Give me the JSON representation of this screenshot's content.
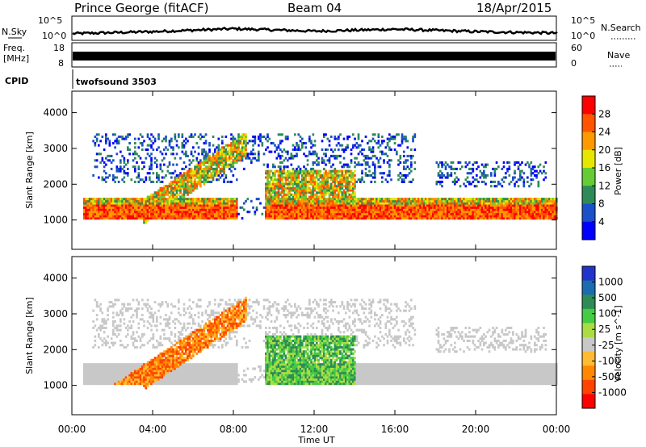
{
  "header": {
    "station": "Prince George (fitACF)",
    "beam": "Beam 04",
    "date": "18/Apr/2015"
  },
  "strip": {
    "nsky_label": "N.Sky",
    "nsky_ticks": [
      "10^5",
      "10^0"
    ],
    "nsearch_label": "N.Search",
    "nsearch_ticks": [
      "10^5",
      "10^0"
    ],
    "freq_label_1": "Freq.",
    "freq_label_2": "[MHz]",
    "freq_ticks": [
      "18",
      "8"
    ],
    "nave_label": "Nave",
    "nave_ticks": [
      "60",
      "0"
    ],
    "cpid_label": "CPID",
    "cpid_value": "twofsound 3503"
  },
  "colors": {
    "power": [
      "#0000ff",
      "#1a50c8",
      "#2e8b57",
      "#66cc33",
      "#e6e600",
      "#ff9900",
      "#ff5500",
      "#ff0000"
    ],
    "velocity": [
      "#ff0000",
      "#ff4400",
      "#ff8800",
      "#ffbb33",
      "#c8c8c8",
      "#aadd44",
      "#44cc44",
      "#2e8b57",
      "#1a6bb0",
      "#2233cc"
    ]
  },
  "chart_data": [
    {
      "type": "heatmap",
      "panel": "power",
      "xlabel": "Time UT",
      "ylabel": "Slant Range [km]",
      "x_ticks": [
        "00:00",
        "04:00",
        "08:00",
        "12:00",
        "16:00",
        "20:00",
        "00:00"
      ],
      "xlim": [
        "00:00",
        "24:00"
      ],
      "y_ticks": [
        "1000",
        "2000",
        "3000",
        "4000"
      ],
      "ylim": [
        180,
        4600
      ],
      "colorbar_label": "Power [dB]",
      "colorbar_ticks": [
        "28",
        "24",
        "20",
        "16",
        "12",
        "8",
        "4"
      ],
      "colorbar_range": [
        0,
        30
      ],
      "structures": [
        {
          "feature": "main scatter band",
          "t": [
            0.5,
            24
          ],
          "range_km": [
            1000,
            1600
          ],
          "power_db": [
            4,
            30
          ]
        },
        {
          "feature": "rising arc",
          "t": [
            3.5,
            8.6
          ],
          "range_km": [
            1200,
            3100
          ],
          "power_db": [
            12,
            26
          ]
        },
        {
          "feature": "post-noon band",
          "t": [
            9.5,
            14
          ],
          "range_km": [
            1000,
            2400
          ],
          "power_db": [
            10,
            28
          ]
        },
        {
          "feature": "evening band",
          "t": [
            18,
            24
          ],
          "range_km": [
            1000,
            1600
          ],
          "power_db": [
            12,
            28
          ]
        }
      ]
    },
    {
      "type": "heatmap",
      "panel": "velocity",
      "xlabel": "Time UT",
      "ylabel": "Slant Range [km]",
      "x_ticks": [
        "00:00",
        "04:00",
        "08:00",
        "12:00",
        "16:00",
        "20:00",
        "00:00"
      ],
      "xlim": [
        "00:00",
        "24:00"
      ],
      "y_ticks": [
        "1000",
        "2000",
        "3000",
        "4000"
      ],
      "ylim": [
        180,
        4600
      ],
      "colorbar_label": "Velocity [m s^-1]",
      "colorbar_ticks": [
        "1000",
        "500",
        "100",
        "25",
        "-25",
        "-100",
        "-500",
        "-1000"
      ],
      "structures": [
        {
          "feature": "ground scatter band",
          "t": [
            0.5,
            24
          ],
          "range_km": [
            900,
            1600
          ],
          "velocity": [
            -25,
            25
          ]
        },
        {
          "feature": "receding arc",
          "t": [
            2,
            8.5
          ],
          "range_km": [
            700,
            3200
          ],
          "velocity": [
            -500,
            -100
          ]
        },
        {
          "feature": "approaching patch",
          "t": [
            9.5,
            14
          ],
          "range_km": [
            900,
            2400
          ],
          "velocity": [
            100,
            500
          ]
        }
      ]
    }
  ],
  "timeseries": {
    "nsky": {
      "description_levels": [
        1.4,
        1.8,
        2.4,
        1.9,
        2.3,
        1.8,
        1.5
      ]
    },
    "freq_nave_bar": {
      "filled_fraction": 1.0
    }
  }
}
